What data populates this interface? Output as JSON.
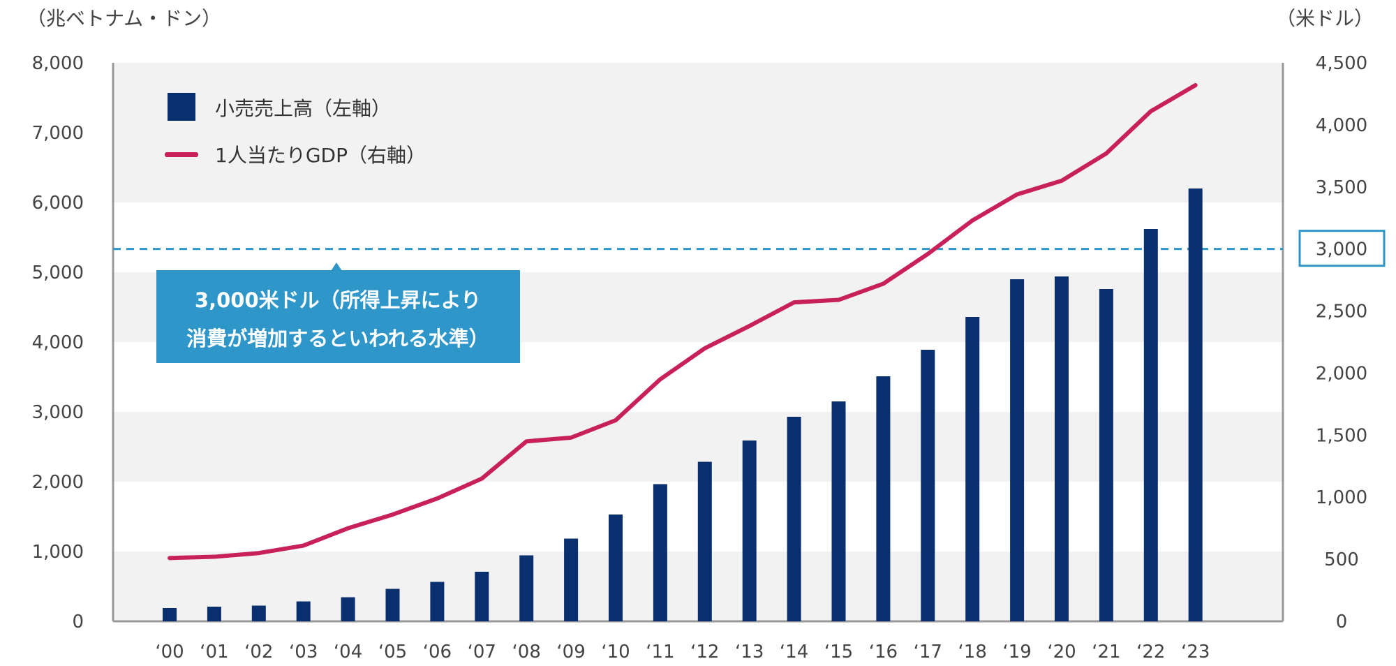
{
  "chart_data": {
    "type": "bar+line",
    "categories": [
      "‘00",
      "‘01",
      "‘02",
      "‘03",
      "‘04",
      "‘05",
      "‘06",
      "‘07",
      "‘08",
      "‘09",
      "‘10",
      "‘11",
      "‘12",
      "‘13",
      "‘14",
      "‘15",
      "‘16",
      "‘17",
      "‘18",
      "‘19",
      "‘20",
      "‘21",
      "‘22",
      "‘23"
    ],
    "series": [
      {
        "name": "小売売上高（左軸）",
        "type": "bar",
        "axis": "left",
        "color": "#0a2f6e",
        "values": [
          190,
          210,
          225,
          285,
          345,
          465,
          565,
          710,
          945,
          1185,
          1530,
          1965,
          2285,
          2590,
          2930,
          3150,
          3510,
          3890,
          4360,
          4900,
          4940,
          4760,
          5620,
          6200
        ]
      },
      {
        "name": "1人当たりGDP（右軸）",
        "type": "line",
        "axis": "right",
        "color": "#c8215a",
        "values": [
          510,
          520,
          550,
          610,
          750,
          860,
          990,
          1150,
          1450,
          1480,
          1620,
          1950,
          2200,
          2380,
          2570,
          2590,
          2720,
          2960,
          3230,
          3440,
          3550,
          3770,
          4110,
          4320
        ]
      }
    ],
    "left_axis": {
      "unit": "（兆ベトナム・ドン）",
      "ylim": [
        0,
        8000
      ],
      "ticks": [
        "0",
        "1,000",
        "2,000",
        "3,000",
        "4,000",
        "5,000",
        "6,000",
        "7,000",
        "8,000"
      ]
    },
    "right_axis": {
      "unit": "（米ドル）",
      "ylim": [
        0,
        4500
      ],
      "ticks": [
        "0",
        "500",
        "1,000",
        "1,500",
        "2,000",
        "2,500",
        "3,000",
        "3,500",
        "4,000",
        "4,500"
      ],
      "highlight_tick": "3,000"
    },
    "reference_line": {
      "value": 3000,
      "axis": "right",
      "color": "#2e96c9",
      "label_line1": "3,000米ドル（所得上昇により",
      "label_line2": "消費が増加するといわれる水準）"
    },
    "legend": {
      "placement": "top-left"
    },
    "grid": "alternating horizontal bands"
  }
}
